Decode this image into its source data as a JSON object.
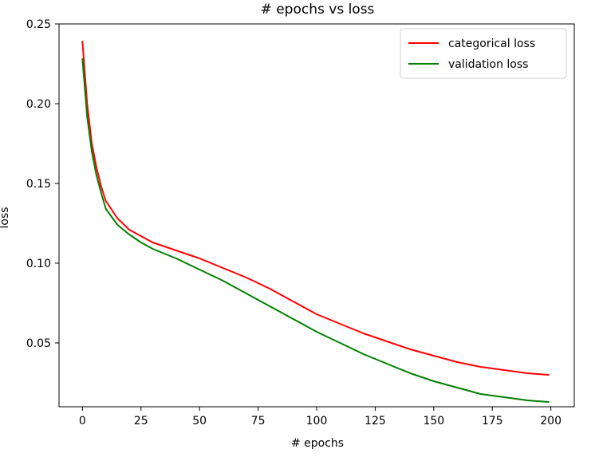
{
  "chart_data": {
    "type": "line",
    "title": "# epochs vs loss",
    "xlabel": "# epochs",
    "ylabel": "loss",
    "xlim": [
      -10,
      210
    ],
    "ylim": [
      0.01,
      0.25
    ],
    "x_ticks": [
      0,
      25,
      50,
      75,
      100,
      125,
      150,
      175,
      200
    ],
    "y_ticks": [
      0.05,
      0.1,
      0.15,
      0.2,
      0.25
    ],
    "x_tick_labels": [
      "0",
      "25",
      "50",
      "75",
      "100",
      "125",
      "150",
      "175",
      "200"
    ],
    "y_tick_labels": [
      "0.05",
      "0.10",
      "0.15",
      "0.20",
      "0.25"
    ],
    "grid": false,
    "legend_position": "top-right",
    "series": [
      {
        "name": "categorical loss",
        "color": "#ff0000",
        "x": [
          0,
          2,
          4,
          6,
          8,
          10,
          15,
          20,
          25,
          30,
          40,
          50,
          60,
          70,
          80,
          90,
          100,
          110,
          120,
          130,
          140,
          150,
          160,
          170,
          180,
          190,
          199
        ],
        "y": [
          0.239,
          0.2,
          0.175,
          0.16,
          0.148,
          0.139,
          0.128,
          0.121,
          0.117,
          0.113,
          0.108,
          0.103,
          0.097,
          0.091,
          0.084,
          0.076,
          0.068,
          0.062,
          0.056,
          0.051,
          0.046,
          0.042,
          0.038,
          0.035,
          0.033,
          0.031,
          0.03
        ]
      },
      {
        "name": "validation loss",
        "color": "#008000",
        "x": [
          0,
          2,
          4,
          6,
          8,
          10,
          15,
          20,
          25,
          30,
          40,
          50,
          60,
          70,
          80,
          90,
          100,
          110,
          120,
          130,
          140,
          150,
          160,
          170,
          180,
          190,
          199
        ],
        "y": [
          0.228,
          0.192,
          0.17,
          0.155,
          0.144,
          0.134,
          0.124,
          0.118,
          0.113,
          0.109,
          0.103,
          0.096,
          0.089,
          0.081,
          0.073,
          0.065,
          0.057,
          0.05,
          0.043,
          0.037,
          0.031,
          0.026,
          0.022,
          0.018,
          0.016,
          0.014,
          0.013
        ]
      }
    ]
  }
}
